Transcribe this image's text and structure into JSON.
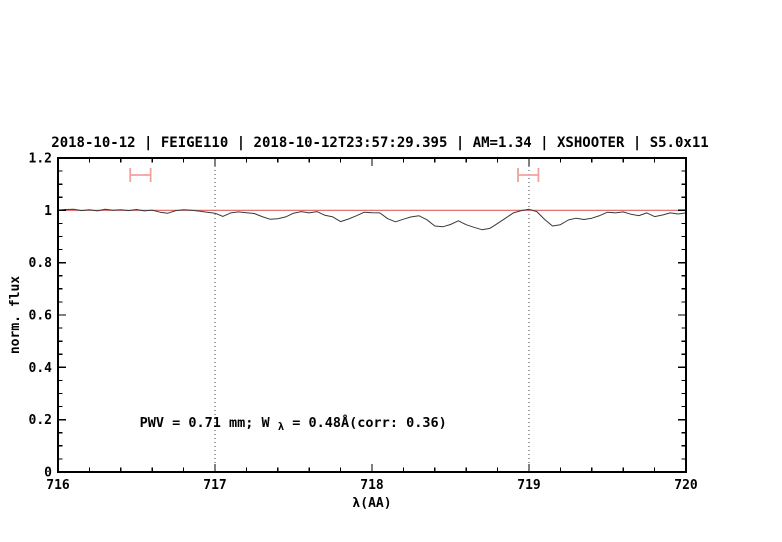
{
  "colors": {
    "accent_blue": "#0000cd",
    "reference_red": "#e06060",
    "marker_pink": "#f2a0a0",
    "spectrum": "#3a3a3a",
    "dotted_line": "#444444",
    "frame": "#000000"
  },
  "chart_data": {
    "type": "line",
    "title": "2018-10-12 | FEIGE110 | 2018-10-12T23:57:29.395 | AM=1.34 | XSHOOTER | S5.0x11",
    "xlabel": "λ(AA)",
    "ylabel": "norm. flux",
    "xlim": [
      716,
      720
    ],
    "ylim": [
      0,
      1.2
    ],
    "grid": "off",
    "legend": "none",
    "x_major_ticks": [
      716,
      717,
      718,
      719,
      720
    ],
    "x_tick_labels": [
      "716",
      "717",
      "718",
      "719",
      "720"
    ],
    "x_minor_step": 0.2,
    "y_major_ticks": [
      0,
      0.2,
      0.4,
      0.6,
      0.8,
      1,
      1.2
    ],
    "y_tick_labels": [
      "0",
      "0.2",
      "0.4",
      "0.6",
      "0.8",
      "1",
      "1.2"
    ],
    "y_minor_step": 0.05,
    "dotted_vlines": [
      717,
      719
    ],
    "reference_line_y": 1.0,
    "series": [
      {
        "name": "normalized spectrum",
        "x": [
          716,
          716.05,
          716.1,
          716.15,
          716.2,
          716.25,
          716.3,
          716.35,
          716.4,
          716.45,
          716.5,
          716.55,
          716.6,
          716.65,
          716.7,
          716.75,
          716.8,
          716.85,
          716.9,
          716.95,
          717,
          717.05,
          717.1,
          717.15,
          717.2,
          717.25,
          717.3,
          717.35,
          717.4,
          717.45,
          717.5,
          717.55,
          717.6,
          717.65,
          717.7,
          717.75,
          717.8,
          717.85,
          717.9,
          717.95,
          718,
          718.05,
          718.1,
          718.15,
          718.2,
          718.25,
          718.3,
          718.35,
          718.4,
          718.45,
          718.5,
          718.55,
          718.6,
          718.65,
          718.7,
          718.75,
          718.8,
          718.85,
          718.9,
          718.95,
          719,
          719.05,
          719.1,
          719.15,
          719.2,
          719.25,
          719.3,
          719.35,
          719.4,
          719.45,
          719.5,
          719.55,
          719.6,
          719.65,
          719.7,
          719.75,
          719.8,
          719.85,
          719.9,
          719.95,
          720
        ],
        "y": [
          1.0,
          1.003,
          1.004,
          0.999,
          1.002,
          0.998,
          1.004,
          1.0,
          1.002,
          0.999,
          1.003,
          0.998,
          1.001,
          0.993,
          0.989,
          0.999,
          1.002,
          1.0,
          0.997,
          0.993,
          0.989,
          0.977,
          0.99,
          0.994,
          0.991,
          0.988,
          0.976,
          0.966,
          0.968,
          0.975,
          0.989,
          0.995,
          0.99,
          0.995,
          0.981,
          0.975,
          0.957,
          0.967,
          0.979,
          0.993,
          0.991,
          0.99,
          0.968,
          0.956,
          0.966,
          0.975,
          0.979,
          0.964,
          0.94,
          0.937,
          0.946,
          0.96,
          0.945,
          0.935,
          0.926,
          0.931,
          0.95,
          0.97,
          0.99,
          0.999,
          1.004,
          0.995,
          0.965,
          0.94,
          0.945,
          0.963,
          0.97,
          0.965,
          0.97,
          0.98,
          0.993,
          0.99,
          0.994,
          0.985,
          0.98,
          0.99,
          0.976,
          0.982,
          0.99,
          0.986,
          0.99
        ]
      }
    ],
    "interval_markers": [
      {
        "x_start": 716.46,
        "x_end": 716.59,
        "y": 1.135
      },
      {
        "x_start": 718.93,
        "x_end": 719.06,
        "y": 1.135
      }
    ],
    "annotation": {
      "part1": "PWV = 0.71 mm; W",
      "sub": "λ",
      "part2": " = 0.48Å(corr: 0.36)",
      "x": 716.52,
      "y": 0.172
    }
  }
}
